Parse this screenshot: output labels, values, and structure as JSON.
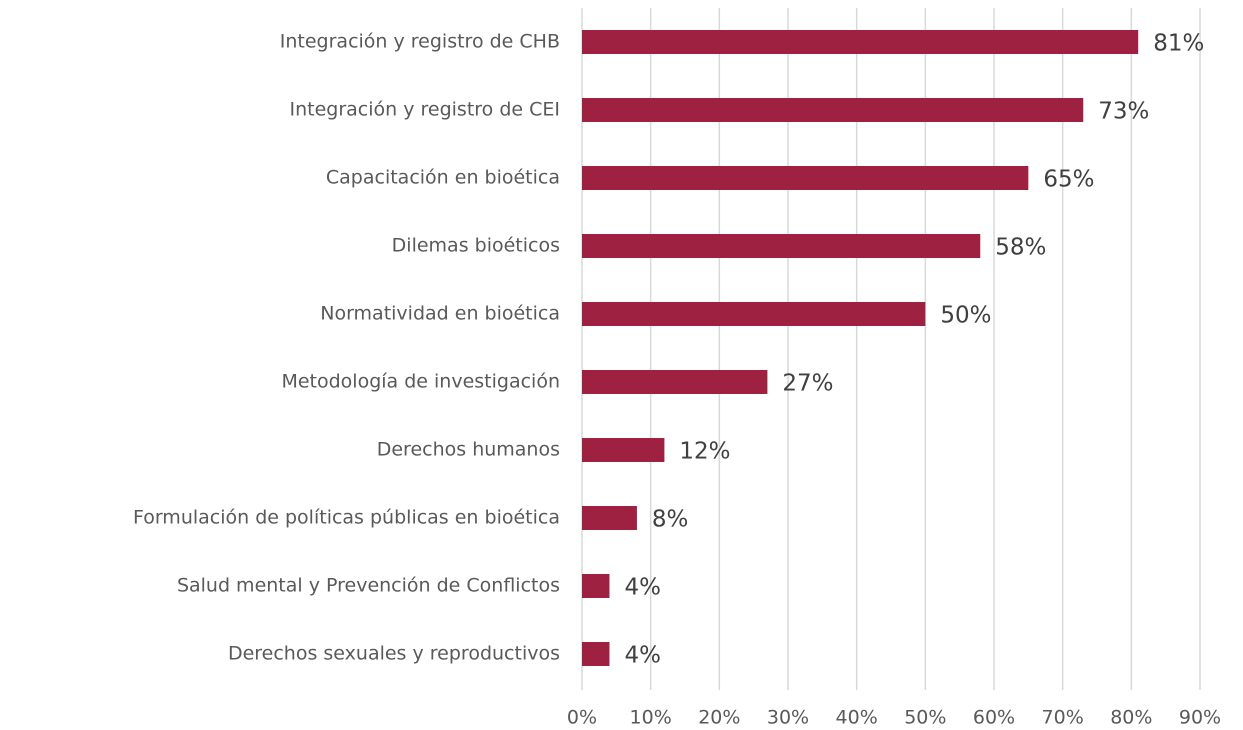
{
  "chart_data": {
    "type": "bar",
    "categories": [
      "Integración y registro de CHB",
      "Integración y registro de CEI",
      "Capacitación en bioética",
      "Dilemas bioéticos",
      "Normatividad en bioética",
      "Metodología de investigación",
      "Derechos humanos",
      "Formulación de políticas públicas en bioética",
      "Salud mental y Prevención de Conflictos",
      "Derechos sexuales y reproductivos"
    ],
    "values": [
      81,
      73,
      65,
      58,
      50,
      27,
      12,
      8,
      4,
      4
    ],
    "value_labels": [
      "81%",
      "73%",
      "65%",
      "58%",
      "50%",
      "27%",
      "12%",
      "8%",
      "4%",
      "4%"
    ],
    "color": "#9e2142",
    "xlim": [
      0,
      90
    ],
    "xticks": [
      {
        "value": 0,
        "label": "0%"
      },
      {
        "value": 10,
        "label": "10%"
      },
      {
        "value": 20,
        "label": "20%"
      },
      {
        "value": 30,
        "label": "30%"
      },
      {
        "value": 40,
        "label": "40%"
      },
      {
        "value": 50,
        "label": "50%"
      },
      {
        "value": 60,
        "label": "60%"
      },
      {
        "value": 70,
        "label": "70%"
      },
      {
        "value": 80,
        "label": "80%"
      },
      {
        "value": 90,
        "label": "90%"
      }
    ],
    "grid": true
  }
}
